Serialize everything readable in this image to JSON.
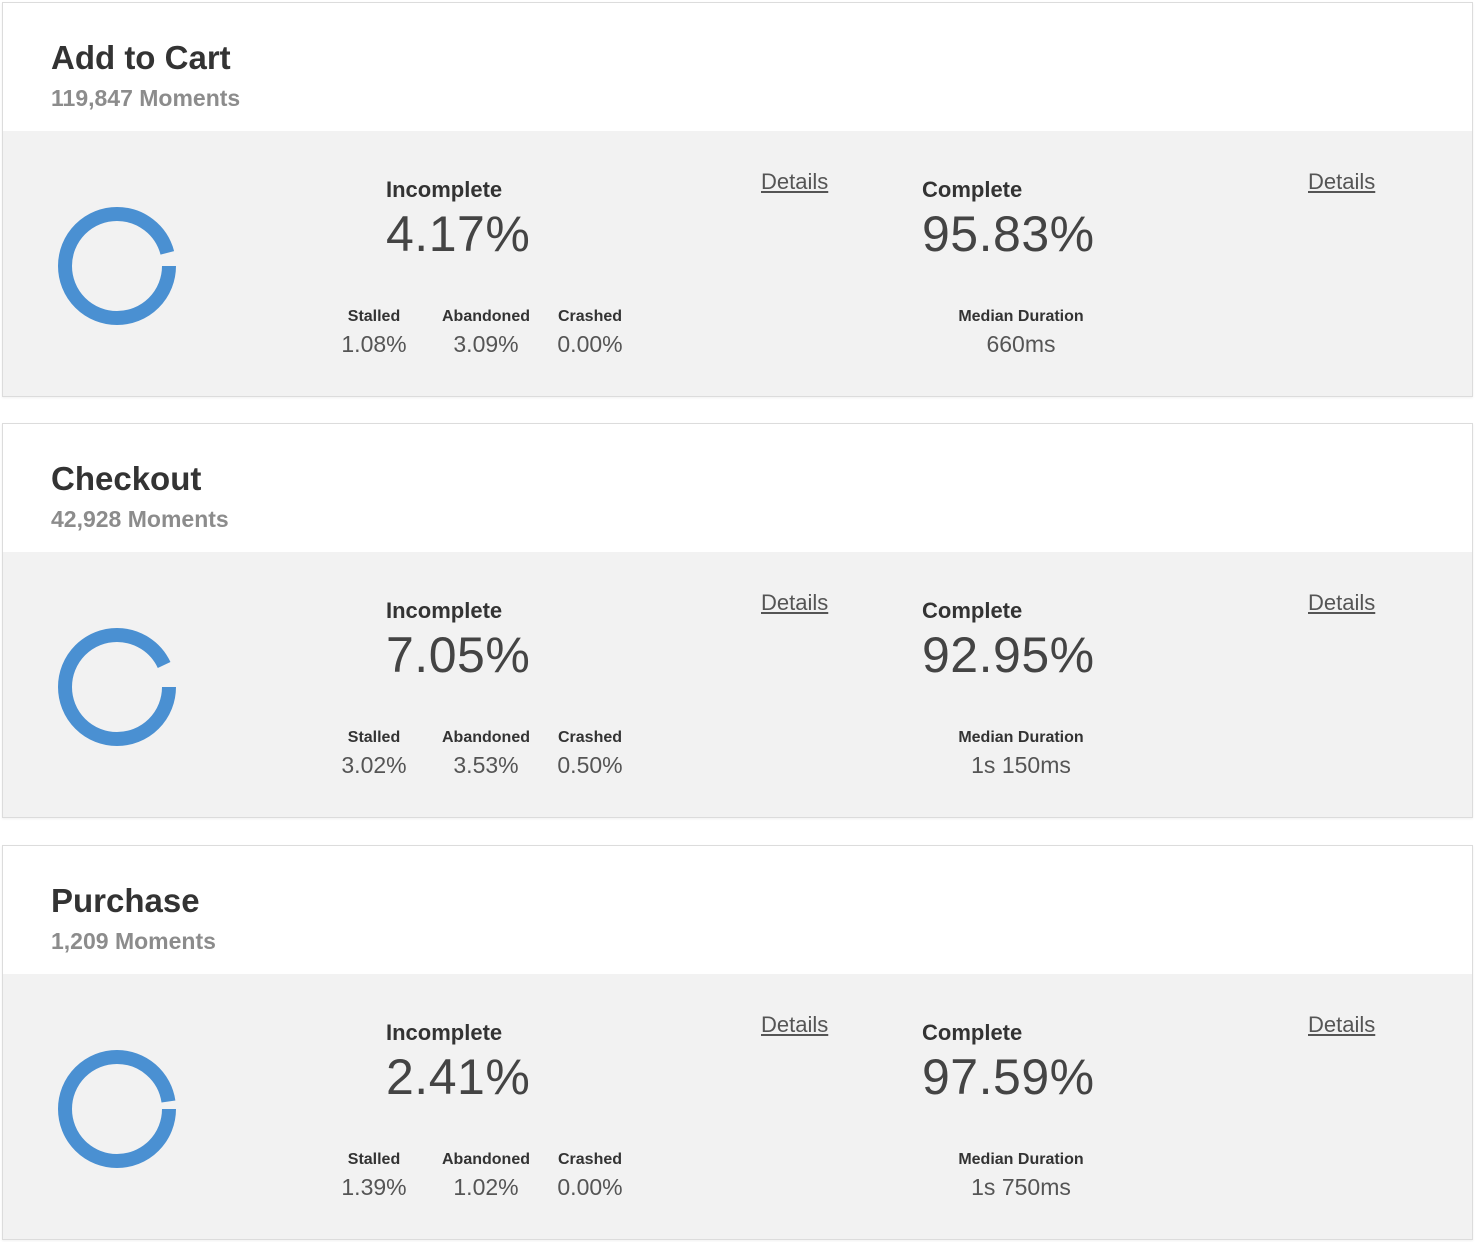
{
  "colors": {
    "donut_stroke": "#4a90d2",
    "panel_bg": "#f2f2f2",
    "title": "#333333",
    "moments": "#8c8c8c"
  },
  "cards": [
    {
      "title": "Add to Cart",
      "moments": "119,847 Moments",
      "incomplete_label": "Incomplete",
      "incomplete_value": "4.17%",
      "complete_label": "Complete",
      "complete_value": "95.83%",
      "complete_fraction": 0.9583,
      "details_label": "Details",
      "stalled_label": "Stalled",
      "stalled_value": "1.08%",
      "abandoned_label": "Abandoned",
      "abandoned_value": "3.09%",
      "crashed_label": "Crashed",
      "crashed_value": "0.00%",
      "median_label": "Median Duration",
      "median_value": "660ms"
    },
    {
      "title": "Checkout",
      "moments": "42,928 Moments",
      "incomplete_label": "Incomplete",
      "incomplete_value": "7.05%",
      "complete_label": "Complete",
      "complete_value": "92.95%",
      "complete_fraction": 0.9295,
      "details_label": "Details",
      "stalled_label": "Stalled",
      "stalled_value": "3.02%",
      "abandoned_label": "Abandoned",
      "abandoned_value": "3.53%",
      "crashed_label": "Crashed",
      "crashed_value": "0.50%",
      "median_label": "Median Duration",
      "median_value": "1s 150ms"
    },
    {
      "title": "Purchase",
      "moments": "1,209 Moments",
      "incomplete_label": "Incomplete",
      "incomplete_value": "2.41%",
      "complete_label": "Complete",
      "complete_value": "97.59%",
      "complete_fraction": 0.9759,
      "details_label": "Details",
      "stalled_label": "Stalled",
      "stalled_value": "1.39%",
      "abandoned_label": "Abandoned",
      "abandoned_value": "1.02%",
      "crashed_label": "Crashed",
      "crashed_value": "0.00%",
      "median_label": "Median Duration",
      "median_value": "1s 750ms"
    }
  ]
}
